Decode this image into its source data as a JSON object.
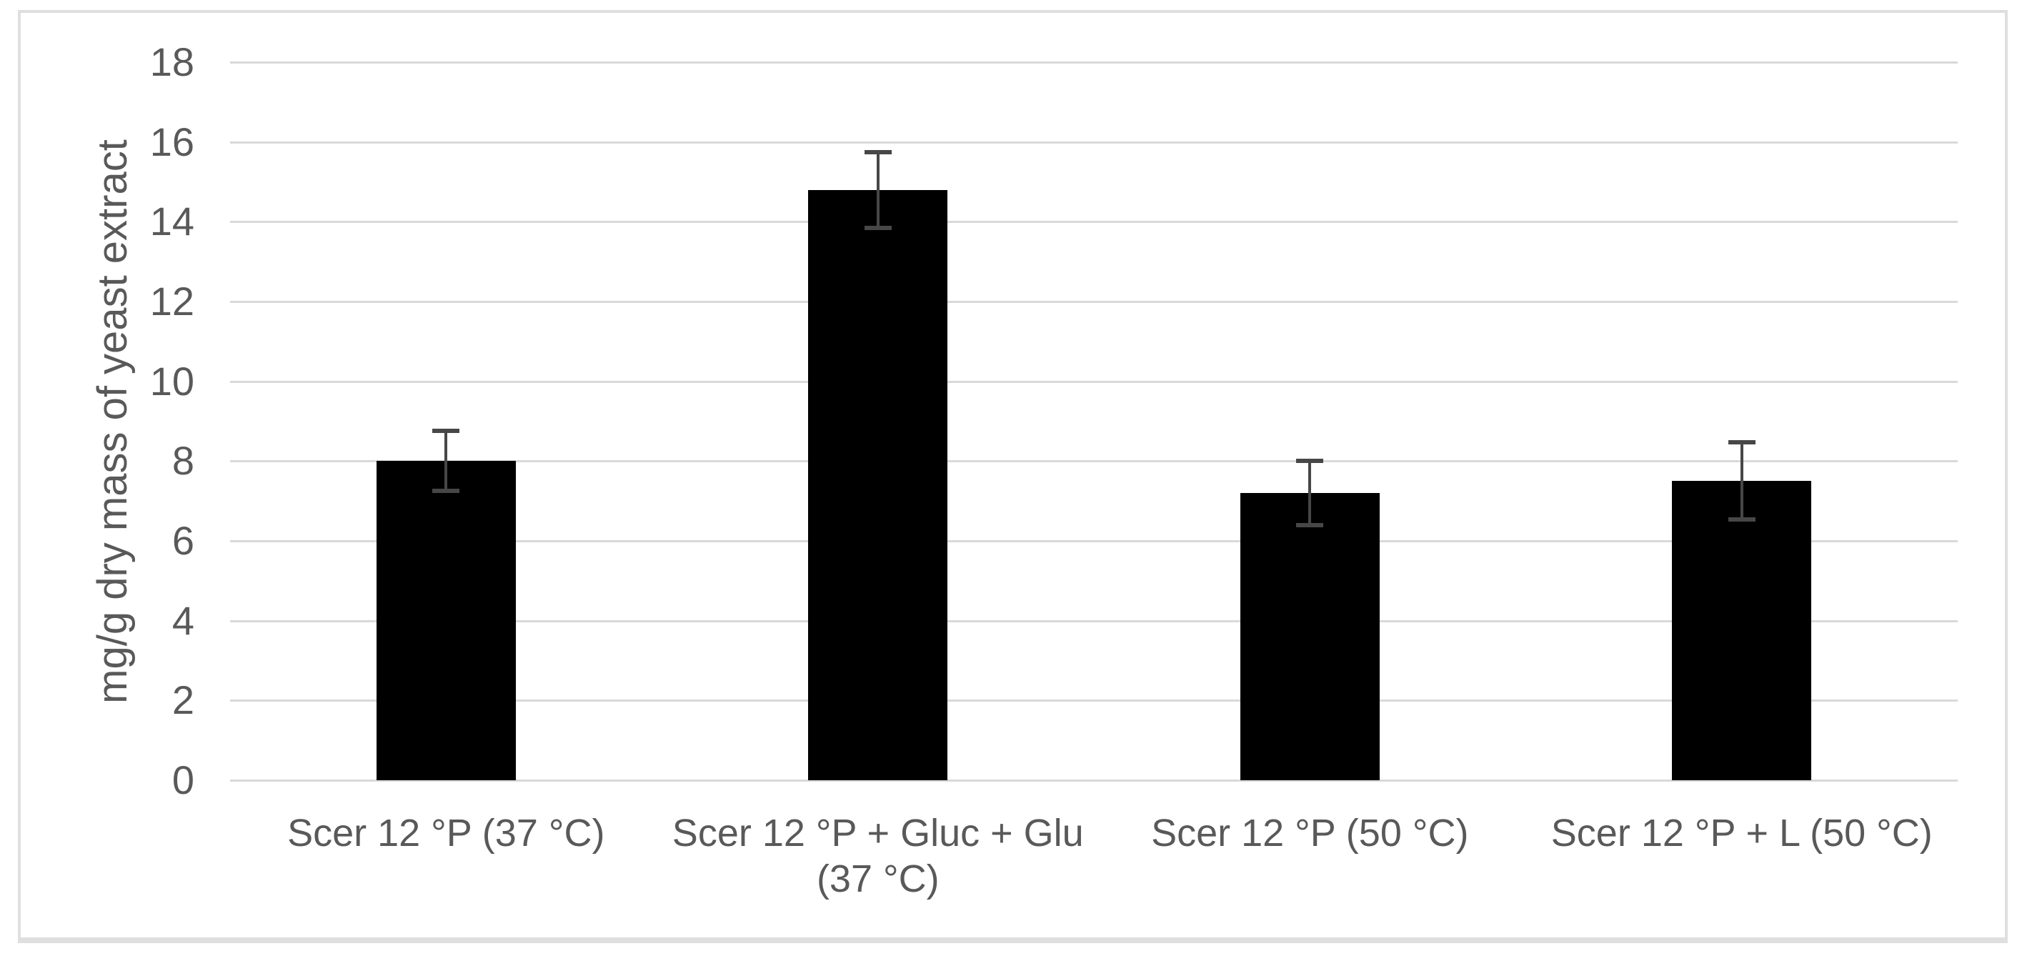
{
  "chart_data": {
    "type": "bar",
    "title": "",
    "xlabel": "",
    "ylabel": "mg/g dry mass of yeast extract",
    "ylim": [
      0,
      18
    ],
    "yticks": [
      0,
      2,
      4,
      6,
      8,
      10,
      12,
      14,
      16,
      18
    ],
    "grid": true,
    "legend": "none",
    "categories": [
      "Scer 12 °P (37 °C)",
      "Scer 12 °P + Gluc + Glu (37 °C)",
      "Scer 12 °P (50 °C)",
      "Scer 12 °P + L (50 °C)"
    ],
    "category_lines": [
      [
        "Scer 12 °P (37 °C)"
      ],
      [
        "Scer 12 °P + Gluc + Glu",
        "(37 °C)"
      ],
      [
        "Scer 12 °P (50 °C)"
      ],
      [
        "Scer 12 °P + L (50 °C)"
      ]
    ],
    "values": [
      8.0,
      14.8,
      7.2,
      7.5
    ],
    "error_bars": [
      0.75,
      0.95,
      0.8,
      0.97
    ]
  },
  "colors": {
    "bar": "#000000",
    "error_bar": "#474747",
    "gridline": "#d9d9d9",
    "border": "#dfdfdf",
    "text": "#595959",
    "background": "#ffffff"
  }
}
